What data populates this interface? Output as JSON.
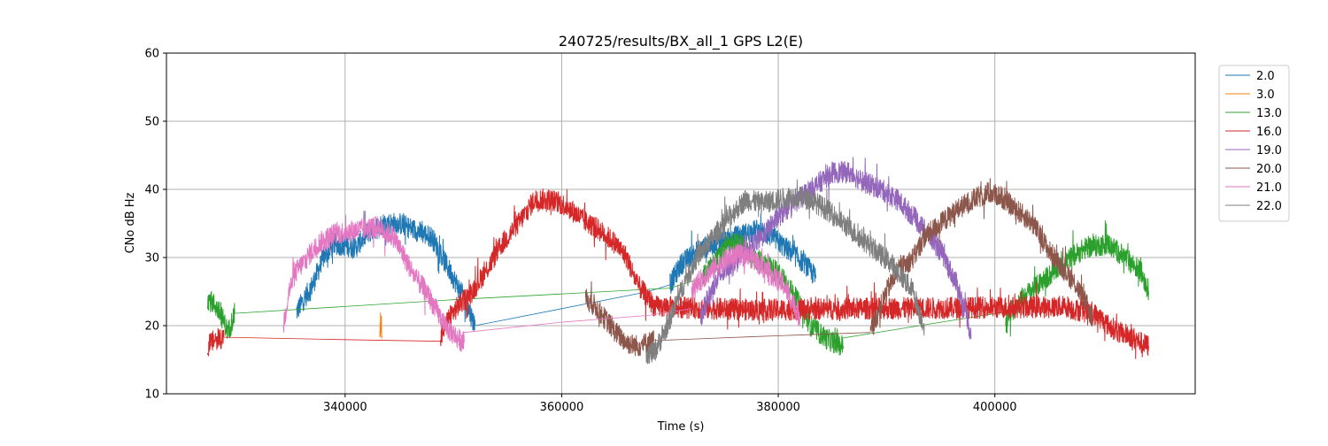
{
  "chart_data": {
    "type": "line",
    "title": "240725/results/BX_all_1 GPS L2(E)",
    "xlabel": "Time (s)",
    "ylabel": "CNo dB Hz",
    "xlim": [
      323500,
      418500
    ],
    "ylim": [
      10,
      60
    ],
    "xticks": [
      340000,
      360000,
      380000,
      400000
    ],
    "yticks": [
      10,
      20,
      30,
      40,
      50,
      60
    ],
    "grid": true,
    "legend_position": "outside-right-top",
    "colors": {
      "2.0": "#1f77b4",
      "3.0": "#ff7f0e",
      "13.0": "#2ca02c",
      "16.0": "#d62728",
      "19.0": "#9467bd",
      "20.0": "#8c564b",
      "21.0": "#e377c2",
      "22.0": "#7f7f7f"
    },
    "series": [
      {
        "name": "2.0",
        "segments": [
          [
            [
              335500,
              22
            ],
            [
              337000,
              26
            ],
            [
              338000,
              30
            ],
            [
              339000,
              32
            ],
            [
              341000,
              31.5
            ],
            [
              342000,
              33.5
            ],
            [
              343500,
              35
            ],
            [
              345000,
              35
            ],
            [
              346500,
              34
            ],
            [
              348000,
              33
            ],
            [
              349000,
              30
            ],
            [
              350000,
              27
            ],
            [
              351000,
              24
            ],
            [
              352000,
              20
            ]
          ],
          [
            [
              352000,
              20
            ],
            [
              360000,
              22.5
            ],
            [
              368000,
              25
            ],
            [
              370000,
              26
            ]
          ],
          [
            [
              370000,
              26
            ],
            [
              371000,
              29
            ],
            [
              372500,
              31
            ],
            [
              374000,
              32
            ],
            [
              376000,
              33
            ],
            [
              378000,
              34
            ],
            [
              379500,
              33
            ],
            [
              381000,
              31
            ],
            [
              382500,
              29
            ],
            [
              383500,
              27
            ]
          ]
        ]
      },
      {
        "name": "3.0",
        "segments": [
          [
            [
              343200,
              18.5
            ],
            [
              343250,
              20
            ],
            [
              343300,
              21
            ],
            [
              343350,
              19.5
            ],
            [
              343400,
              18.5
            ]
          ]
        ]
      },
      {
        "name": "13.0",
        "segments": [
          [
            [
              327300,
              24
            ],
            [
              328000,
              23
            ],
            [
              328700,
              21
            ],
            [
              329200,
              19
            ],
            [
              329800,
              21.8
            ]
          ],
          [
            [
              329800,
              21.8
            ],
            [
              350000,
              23.8
            ],
            [
              370000,
              25.5
            ],
            [
              373000,
              27
            ]
          ],
          [
            [
              373000,
              27
            ],
            [
              374500,
              30
            ],
            [
              375500,
              32
            ],
            [
              376500,
              32
            ],
            [
              377500,
              30
            ],
            [
              379000,
              29
            ],
            [
              380500,
              27
            ],
            [
              382000,
              23
            ],
            [
              383000,
              20
            ],
            [
              384500,
              18
            ],
            [
              386000,
              17
            ]
          ],
          [
            [
              386000,
              18.2
            ],
            [
              395000,
              20.5
            ],
            [
              401000,
              22
            ]
          ],
          [
            [
              401000,
              21
            ],
            [
              402500,
              24
            ],
            [
              404000,
              26
            ],
            [
              405500,
              28
            ],
            [
              407000,
              30
            ],
            [
              408500,
              31.5
            ],
            [
              410500,
              32
            ],
            [
              412000,
              30
            ],
            [
              413500,
              28
            ],
            [
              414200,
              25
            ]
          ]
        ]
      },
      {
        "name": "16.0",
        "segments": [
          [
            [
              327300,
              17
            ],
            [
              328000,
              18
            ],
            [
              328800,
              18.3
            ]
          ],
          [
            [
              328800,
              18.3
            ],
            [
              338000,
              18
            ],
            [
              349000,
              17.7
            ]
          ],
          [
            [
              348800,
              18
            ],
            [
              349500,
              21
            ],
            [
              350500,
              23
            ],
            [
              351500,
              24.5
            ],
            [
              353000,
              28
            ],
            [
              354500,
              32
            ],
            [
              356000,
              35
            ],
            [
              357500,
              38.5
            ],
            [
              359000,
              38.5
            ],
            [
              360500,
              37.5
            ],
            [
              362000,
              35.5
            ],
            [
              363500,
              34
            ],
            [
              365000,
              32
            ],
            [
              366000,
              30
            ],
            [
              367000,
              26
            ],
            [
              368500,
              23
            ]
          ],
          [
            [
              368500,
              22.8
            ],
            [
              378000,
              22.3
            ],
            [
              387000,
              22.5
            ],
            [
              395000,
              22.6
            ],
            [
              403000,
              22.7
            ],
            [
              407000,
              22.8
            ]
          ],
          [
            [
              407000,
              22.5
            ],
            [
              408500,
              22
            ],
            [
              409500,
              21.5
            ],
            [
              410500,
              20
            ],
            [
              411500,
              19
            ],
            [
              412500,
              18.5
            ],
            [
              413500,
              17.5
            ],
            [
              414200,
              17
            ]
          ]
        ]
      },
      {
        "name": "19.0",
        "segments": [
          [
            [
              372800,
              21
            ],
            [
              373500,
              24
            ],
            [
              374500,
              27
            ],
            [
              375500,
              29
            ],
            [
              377000,
              31
            ],
            [
              378500,
              33
            ],
            [
              380000,
              36
            ],
            [
              381500,
              38
            ],
            [
              383000,
              40
            ],
            [
              385000,
              42.5
            ],
            [
              386500,
              42.5
            ],
            [
              388000,
              41
            ],
            [
              389500,
              40
            ],
            [
              391000,
              38.5
            ],
            [
              392500,
              36
            ],
            [
              393500,
              34
            ],
            [
              395000,
              31
            ],
            [
              396500,
              26
            ],
            [
              397500,
              21
            ],
            [
              397800,
              18
            ]
          ]
        ]
      },
      {
        "name": "20.0",
        "segments": [
          [
            [
              362200,
              24
            ],
            [
              363000,
              23
            ],
            [
              364000,
              21
            ],
            [
              365000,
              19
            ],
            [
              366000,
              17.5
            ],
            [
              367000,
              17
            ],
            [
              368500,
              17.8
            ]
          ],
          [
            [
              368500,
              17.8
            ],
            [
              378000,
              18.4
            ],
            [
              388500,
              19
            ]
          ],
          [
            [
              388500,
              19
            ],
            [
              389000,
              21
            ],
            [
              390000,
              25
            ],
            [
              391000,
              28
            ],
            [
              392500,
              30
            ],
            [
              393500,
              33
            ],
            [
              395000,
              35
            ],
            [
              396500,
              37
            ],
            [
              398000,
              38.5
            ],
            [
              399500,
              39.5
            ],
            [
              400500,
              39
            ],
            [
              402000,
              37
            ],
            [
              403500,
              35
            ],
            [
              405000,
              31
            ],
            [
              406500,
              28
            ],
            [
              407500,
              26
            ],
            [
              408500,
              23
            ],
            [
              409000,
              21
            ]
          ]
        ]
      },
      {
        "name": "21.0",
        "segments": [
          [
            [
              334300,
              20
            ],
            [
              334800,
              25
            ],
            [
              335500,
              28
            ],
            [
              336500,
              30
            ],
            [
              337500,
              32
            ],
            [
              339000,
              33.5
            ],
            [
              341000,
              34
            ],
            [
              343000,
              34.5
            ],
            [
              344500,
              33
            ],
            [
              345500,
              30
            ],
            [
              346500,
              27
            ],
            [
              347500,
              25
            ],
            [
              348500,
              22
            ],
            [
              349500,
              19.5
            ],
            [
              350500,
              18
            ],
            [
              351000,
              17.5
            ]
          ],
          [
            [
              351000,
              19
            ],
            [
              360000,
              20.5
            ],
            [
              368000,
              21.5
            ],
            [
              372000,
              22.5
            ]
          ],
          [
            [
              372000,
              25
            ],
            [
              373000,
              27
            ],
            [
              374500,
              29
            ],
            [
              376000,
              30.5
            ],
            [
              377500,
              30
            ],
            [
              379000,
              28
            ],
            [
              380500,
              26
            ],
            [
              381500,
              23
            ],
            [
              382000,
              21
            ]
          ]
        ]
      },
      {
        "name": "22.0",
        "segments": [
          [
            [
              367800,
              16
            ],
            [
              368500,
              16
            ],
            [
              369500,
              19
            ],
            [
              370500,
              23
            ],
            [
              371500,
              27
            ],
            [
              372500,
              30
            ],
            [
              374000,
              33
            ],
            [
              375500,
              36
            ],
            [
              377000,
              38.5
            ],
            [
              378500,
              38
            ],
            [
              380000,
              38.5
            ],
            [
              381500,
              39
            ],
            [
              383000,
              38.5
            ],
            [
              384500,
              37
            ],
            [
              386000,
              35
            ],
            [
              387500,
              33
            ],
            [
              389000,
              31
            ],
            [
              390500,
              29
            ],
            [
              391500,
              27
            ],
            [
              392500,
              25
            ],
            [
              393000,
              22
            ],
            [
              393500,
              20
            ]
          ]
        ]
      }
    ]
  }
}
